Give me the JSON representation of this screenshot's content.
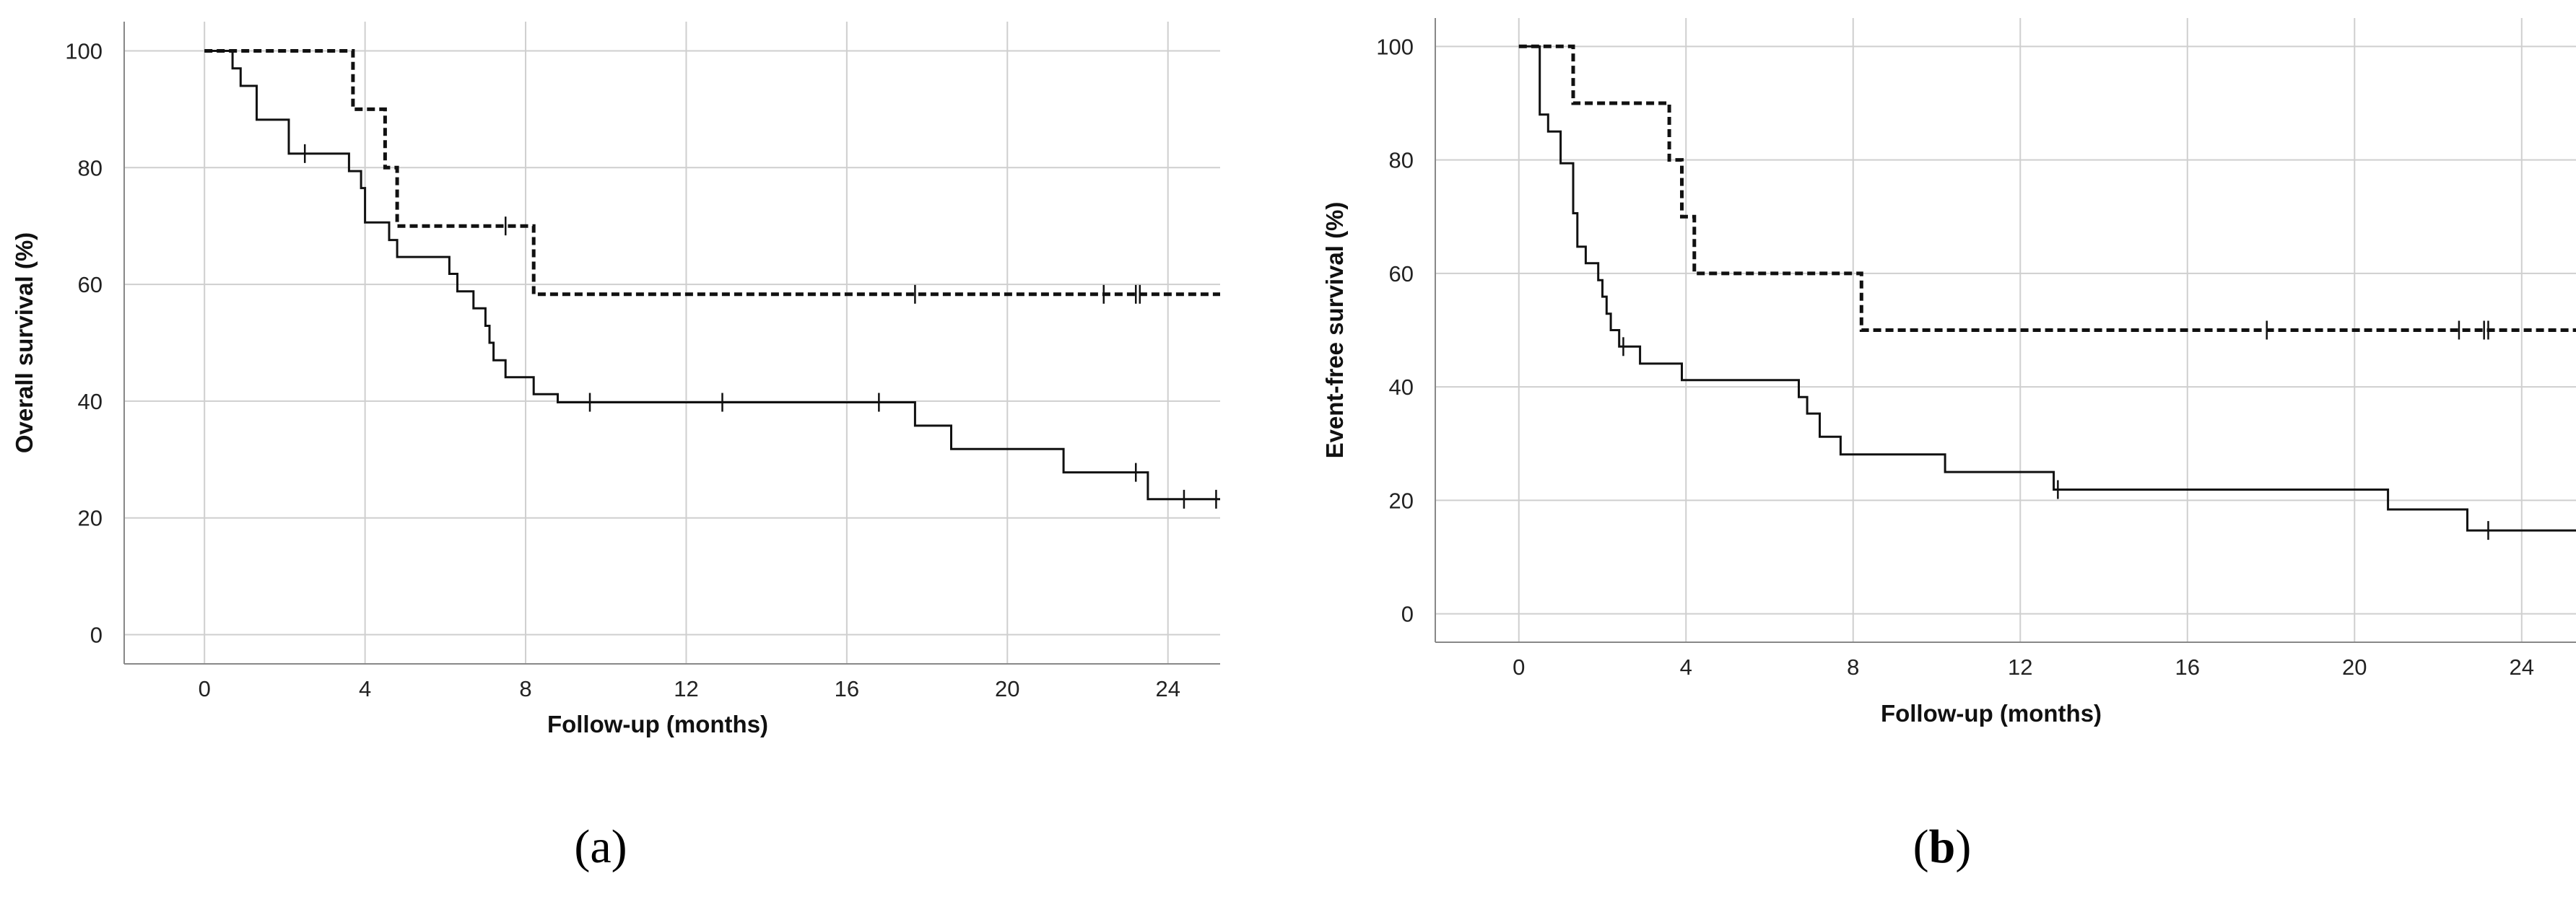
{
  "chart_data": [
    {
      "type": "line",
      "panel_label": [
        "(",
        "a",
        ")"
      ],
      "xlabel": "Follow-up (months)",
      "ylabel": "Overall survival (%)",
      "xlim": [
        -2,
        25.3
      ],
      "ylim": [
        -5,
        105
      ],
      "xticks": [
        0,
        4,
        8,
        12,
        16,
        20,
        24
      ],
      "yticks": [
        0,
        20,
        40,
        60,
        80,
        100
      ],
      "grid": true,
      "series": [
        {
          "style": "dashed",
          "points": [
            [
              0,
              100
            ],
            [
              3.7,
              100
            ],
            [
              3.7,
              90
            ],
            [
              4.5,
              90
            ],
            [
              4.5,
              80
            ],
            [
              4.8,
              80
            ],
            [
              4.8,
              70
            ],
            [
              8.2,
              70
            ],
            [
              8.2,
              58.3
            ],
            [
              25.3,
              58.3
            ]
          ],
          "censored": [
            [
              7.5,
              70
            ],
            [
              17.7,
              58.3
            ],
            [
              22.4,
              58.3
            ],
            [
              23.2,
              58.3
            ],
            [
              23.3,
              58.3
            ]
          ]
        },
        {
          "style": "solid",
          "points": [
            [
              0,
              100
            ],
            [
              0.7,
              100
            ],
            [
              0.7,
              97
            ],
            [
              0.9,
              97
            ],
            [
              0.9,
              94
            ],
            [
              1.3,
              94
            ],
            [
              1.3,
              88.2
            ],
            [
              2.1,
              88.2
            ],
            [
              2.1,
              82.4
            ],
            [
              3.6,
              82.4
            ],
            [
              3.6,
              79.4
            ],
            [
              3.9,
              79.4
            ],
            [
              3.9,
              76.5
            ],
            [
              4,
              76.5
            ],
            [
              4,
              70.6
            ],
            [
              4.6,
              70.6
            ],
            [
              4.6,
              67.6
            ],
            [
              4.8,
              67.6
            ],
            [
              4.8,
              64.7
            ],
            [
              6.1,
              64.7
            ],
            [
              6.1,
              61.8
            ],
            [
              6.3,
              61.8
            ],
            [
              6.3,
              58.8
            ],
            [
              6.7,
              58.8
            ],
            [
              6.7,
              55.9
            ],
            [
              7,
              55.9
            ],
            [
              7,
              52.9
            ],
            [
              7.1,
              52.9
            ],
            [
              7.1,
              50
            ],
            [
              7.2,
              50
            ],
            [
              7.2,
              47
            ],
            [
              7.5,
              47
            ],
            [
              7.5,
              44.1
            ],
            [
              8.2,
              44.1
            ],
            [
              8.2,
              41.2
            ],
            [
              8.8,
              41.2
            ],
            [
              8.8,
              39.8
            ],
            [
              17.7,
              39.8
            ],
            [
              17.7,
              35.8
            ],
            [
              18.6,
              35.8
            ],
            [
              18.6,
              31.8
            ],
            [
              21.4,
              31.8
            ],
            [
              21.4,
              27.8
            ],
            [
              23.5,
              27.8
            ],
            [
              23.5,
              23.2
            ],
            [
              25.3,
              23.2
            ]
          ],
          "censored": [
            [
              2.5,
              82.4
            ],
            [
              9.6,
              39.8
            ],
            [
              12.9,
              39.8
            ],
            [
              16.8,
              39.8
            ],
            [
              23.2,
              27.8
            ],
            [
              24.4,
              23.2
            ],
            [
              25.2,
              23.2
            ]
          ]
        }
      ]
    },
    {
      "type": "line",
      "panel_label": [
        "(",
        "b",
        ")"
      ],
      "xlabel": "Follow-up (months)",
      "ylabel": "Event-free survival (%)",
      "xlim": [
        -2,
        25.3
      ],
      "ylim": [
        -5,
        105
      ],
      "xticks": [
        0,
        4,
        8,
        12,
        16,
        20,
        24
      ],
      "yticks": [
        0,
        20,
        40,
        60,
        80,
        100
      ],
      "grid": true,
      "series": [
        {
          "style": "dashed",
          "points": [
            [
              0,
              100
            ],
            [
              1.3,
              100
            ],
            [
              1.3,
              90
            ],
            [
              3.6,
              90
            ],
            [
              3.6,
              80
            ],
            [
              3.9,
              80
            ],
            [
              3.9,
              70
            ],
            [
              4.2,
              70
            ],
            [
              4.2,
              60
            ],
            [
              8.2,
              60
            ],
            [
              8.2,
              50
            ],
            [
              25.3,
              50
            ]
          ],
          "censored": [
            [
              17.9,
              50
            ],
            [
              22.5,
              50
            ],
            [
              23.1,
              50
            ],
            [
              23.2,
              50
            ]
          ]
        },
        {
          "style": "solid",
          "points": [
            [
              0,
              100
            ],
            [
              0.5,
              100
            ],
            [
              0.5,
              88
            ],
            [
              0.7,
              88
            ],
            [
              0.7,
              85
            ],
            [
              1,
              85
            ],
            [
              1,
              79.4
            ],
            [
              1.3,
              79.4
            ],
            [
              1.3,
              70.6
            ],
            [
              1.4,
              70.6
            ],
            [
              1.4,
              64.7
            ],
            [
              1.6,
              64.7
            ],
            [
              1.6,
              61.8
            ],
            [
              1.9,
              61.8
            ],
            [
              1.9,
              58.8
            ],
            [
              2.0,
              58.8
            ],
            [
              2.0,
              55.9
            ],
            [
              2.1,
              55.9
            ],
            [
              2.1,
              52.9
            ],
            [
              2.2,
              52.9
            ],
            [
              2.2,
              50
            ],
            [
              2.4,
              50
            ],
            [
              2.4,
              47.1
            ],
            [
              2.9,
              47.1
            ],
            [
              2.9,
              44.1
            ],
            [
              3.9,
              44.1
            ],
            [
              3.9,
              41.2
            ],
            [
              6.7,
              41.2
            ],
            [
              6.7,
              38.2
            ],
            [
              6.9,
              38.2
            ],
            [
              6.9,
              35.3
            ],
            [
              7.2,
              35.3
            ],
            [
              7.2,
              31.2
            ],
            [
              7.7,
              31.2
            ],
            [
              7.7,
              28.1
            ],
            [
              10.2,
              28.1
            ],
            [
              10.2,
              25
            ],
            [
              12.8,
              25
            ],
            [
              12.8,
              21.9
            ],
            [
              20.8,
              21.9
            ],
            [
              20.8,
              18.4
            ],
            [
              22.7,
              18.4
            ],
            [
              22.7,
              14.7
            ],
            [
              25.3,
              14.7
            ]
          ],
          "censored": [
            [
              2.5,
              47.1
            ],
            [
              12.9,
              21.9
            ],
            [
              23.2,
              14.7
            ]
          ]
        }
      ]
    }
  ]
}
